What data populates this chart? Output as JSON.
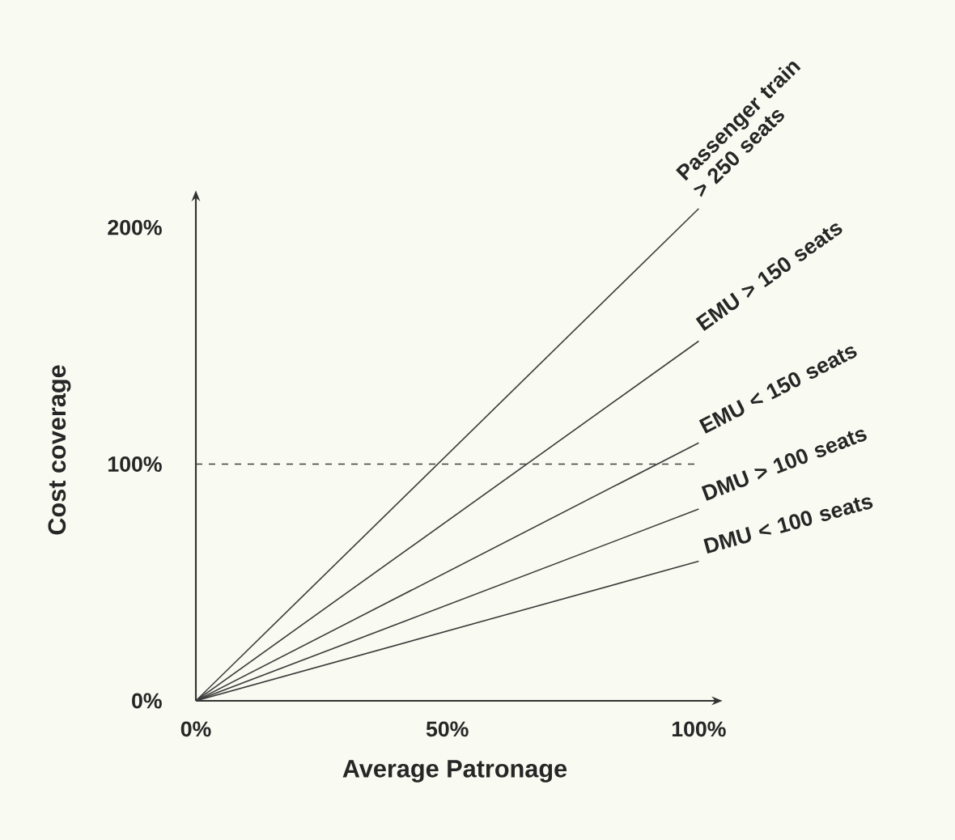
{
  "chart_data": {
    "type": "line",
    "xlabel": "Average Patronage",
    "ylabel": "Cost coverage",
    "x": [
      0,
      100
    ],
    "series": [
      {
        "name": "Passenger train > 250 seats",
        "color": "#3c3c3c",
        "values": [
          0,
          208
        ]
      },
      {
        "name": "EMU > 150 seats",
        "color": "#3c3c3c",
        "values": [
          0,
          152
        ]
      },
      {
        "name": "EMU < 150 seats",
        "color": "#3c3c3c",
        "values": [
          0,
          109
        ]
      },
      {
        "name": "DMU > 100 seats",
        "color": "#3c3c3c",
        "values": [
          0,
          81
        ]
      },
      {
        "name": "DMU < 100 seats",
        "color": "#3c3c3c",
        "values": [
          0,
          59
        ]
      }
    ],
    "xlim": [
      0,
      103
    ],
    "ylim": [
      0,
      212
    ],
    "xticks": [
      {
        "value": 0,
        "label": "0%"
      },
      {
        "value": 50,
        "label": "50%"
      },
      {
        "value": 100,
        "label": "100%"
      }
    ],
    "yticks": [
      {
        "value": 0,
        "label": "0%"
      },
      {
        "value": 100,
        "label": "100%"
      },
      {
        "value": 200,
        "label": "200%"
      }
    ],
    "ref_lines": [
      {
        "axis": "y",
        "value": 100,
        "line_style": "dashed"
      }
    ],
    "legend": false,
    "grid": false
  }
}
